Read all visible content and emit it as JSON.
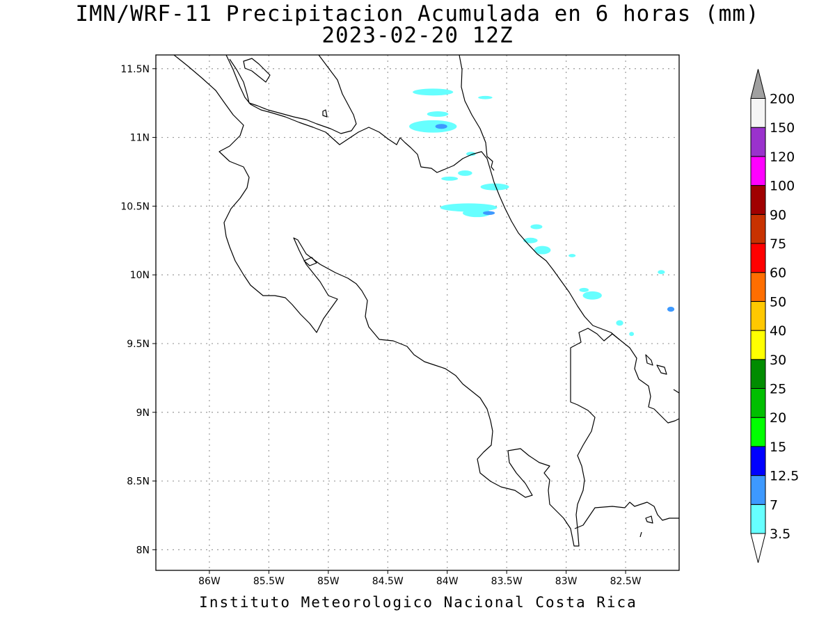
{
  "title": "IMN/WRF-11 Precipitacion Acumulada en 6 horas (mm)",
  "subtitle": "2023-02-20 12Z",
  "footer": "Instituto Meteorologico Nacional Costa Rica",
  "map": {
    "lon_range": [
      -86.45,
      -82.05
    ],
    "lat_range": [
      7.85,
      11.6
    ],
    "lon_ticks": [
      {
        "value": -86.0,
        "label": "86W"
      },
      {
        "value": -85.5,
        "label": "85.5W"
      },
      {
        "value": -85.0,
        "label": "85W"
      },
      {
        "value": -84.5,
        "label": "84.5W"
      },
      {
        "value": -84.0,
        "label": "84W"
      },
      {
        "value": -83.5,
        "label": "83.5W"
      },
      {
        "value": -83.0,
        "label": "83W"
      },
      {
        "value": -82.5,
        "label": "82.5W"
      }
    ],
    "lat_ticks": [
      {
        "value": 11.5,
        "label": "11.5N"
      },
      {
        "value": 11.0,
        "label": "11N"
      },
      {
        "value": 10.5,
        "label": "10.5N"
      },
      {
        "value": 10.0,
        "label": "10N"
      },
      {
        "value": 9.5,
        "label": "9.5N"
      },
      {
        "value": 9.0,
        "label": "9N"
      },
      {
        "value": 8.5,
        "label": "8.5N"
      },
      {
        "value": 8.0,
        "label": "8N"
      }
    ],
    "grid": true
  },
  "colorbar": {
    "low_end_color": "#ffffff",
    "high_end_color": "#a0a0a0",
    "bins": [
      {
        "label": "3.5",
        "color": "#66ffff"
      },
      {
        "label": "7",
        "color": "#3d99ff"
      },
      {
        "label": "12.5",
        "color": "#0000ff"
      },
      {
        "label": "15",
        "color": "#00ff00"
      },
      {
        "label": "20",
        "color": "#00bf00"
      },
      {
        "label": "25",
        "color": "#008c00"
      },
      {
        "label": "30",
        "color": "#ffff00"
      },
      {
        "label": "40",
        "color": "#ffc800"
      },
      {
        "label": "50",
        "color": "#ff6e00"
      },
      {
        "label": "60",
        "color": "#ff0000"
      },
      {
        "label": "75",
        "color": "#c83200"
      },
      {
        "label": "90",
        "color": "#a00000"
      },
      {
        "label": "100",
        "color": "#ff00ff"
      },
      {
        "label": "120",
        "color": "#9a32cd"
      },
      {
        "label": "150",
        "color": "#f5f5f5"
      },
      {
        "label": "200",
        "color": ""
      }
    ]
  },
  "precip_cells": [
    {
      "lon": -84.12,
      "lat": 11.33,
      "dlon": 0.17,
      "dlat": 0.025,
      "bin": 0
    },
    {
      "lon": -84.08,
      "lat": 11.17,
      "dlon": 0.09,
      "dlat": 0.02,
      "bin": 0
    },
    {
      "lon": -84.12,
      "lat": 11.08,
      "dlon": 0.2,
      "dlat": 0.045,
      "bin": 0
    },
    {
      "lon": -84.05,
      "lat": 11.08,
      "dlon": 0.05,
      "dlat": 0.018,
      "bin": 1
    },
    {
      "lon": -83.68,
      "lat": 11.29,
      "dlon": 0.06,
      "dlat": 0.012,
      "bin": 0
    },
    {
      "lon": -83.8,
      "lat": 10.88,
      "dlon": 0.04,
      "dlat": 0.015,
      "bin": 0
    },
    {
      "lon": -83.85,
      "lat": 10.74,
      "dlon": 0.06,
      "dlat": 0.02,
      "bin": 0
    },
    {
      "lon": -83.98,
      "lat": 10.7,
      "dlon": 0.07,
      "dlat": 0.015,
      "bin": 0
    },
    {
      "lon": -83.6,
      "lat": 10.64,
      "dlon": 0.12,
      "dlat": 0.025,
      "bin": 0
    },
    {
      "lon": -83.82,
      "lat": 10.49,
      "dlon": 0.24,
      "dlat": 0.03,
      "bin": 0
    },
    {
      "lon": -83.75,
      "lat": 10.45,
      "dlon": 0.12,
      "dlat": 0.03,
      "bin": 0
    },
    {
      "lon": -83.65,
      "lat": 10.45,
      "dlon": 0.05,
      "dlat": 0.014,
      "bin": 1
    },
    {
      "lon": -83.25,
      "lat": 10.35,
      "dlon": 0.05,
      "dlat": 0.018,
      "bin": 0
    },
    {
      "lon": -83.3,
      "lat": 10.25,
      "dlon": 0.06,
      "dlat": 0.02,
      "bin": 0
    },
    {
      "lon": -83.2,
      "lat": 10.18,
      "dlon": 0.07,
      "dlat": 0.03,
      "bin": 0
    },
    {
      "lon": -82.95,
      "lat": 10.14,
      "dlon": 0.03,
      "dlat": 0.012,
      "bin": 0
    },
    {
      "lon": -82.85,
      "lat": 9.89,
      "dlon": 0.04,
      "dlat": 0.015,
      "bin": 0
    },
    {
      "lon": -82.78,
      "lat": 9.85,
      "dlon": 0.08,
      "dlat": 0.03,
      "bin": 0
    },
    {
      "lon": -82.55,
      "lat": 9.65,
      "dlon": 0.03,
      "dlat": 0.02,
      "bin": 0
    },
    {
      "lon": -82.12,
      "lat": 9.75,
      "dlon": 0.03,
      "dlat": 0.018,
      "bin": 1
    },
    {
      "lon": -82.2,
      "lat": 10.02,
      "dlon": 0.03,
      "dlat": 0.015,
      "bin": 0
    },
    {
      "lon": -82.45,
      "lat": 9.57,
      "dlon": 0.02,
      "dlat": 0.015,
      "bin": 0
    }
  ]
}
